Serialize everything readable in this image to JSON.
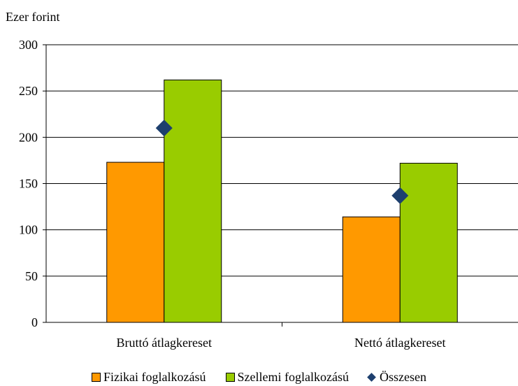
{
  "chart_data": {
    "type": "bar",
    "ylabel": "Ezer forint",
    "ylim": [
      0,
      300
    ],
    "yticks": [
      0,
      50,
      100,
      150,
      200,
      250,
      300
    ],
    "grid": true,
    "legend_position": "bottom",
    "categories": [
      "Bruttó átlagkereset",
      "Nettó átlagkereset"
    ],
    "series": [
      {
        "name": "Fizikai foglalkozású",
        "kind": "bar",
        "color": "#ff9900",
        "values": [
          173,
          114
        ]
      },
      {
        "name": "Szellemi foglalkozású",
        "kind": "bar",
        "color": "#99cc00",
        "values": [
          262,
          172
        ]
      },
      {
        "name": "Összesen",
        "kind": "marker",
        "marker": "diamond",
        "color": "#1d3f6e",
        "values": [
          210,
          137
        ]
      }
    ]
  }
}
